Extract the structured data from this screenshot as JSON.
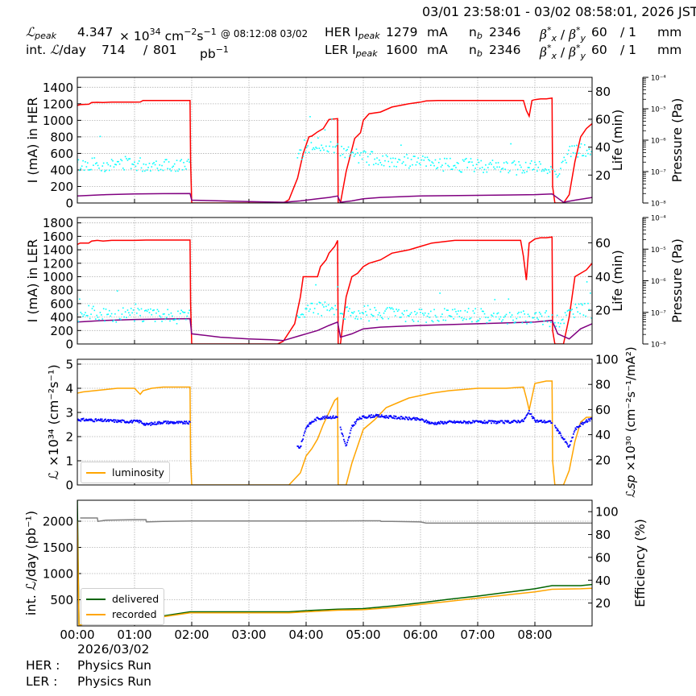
{
  "header": {
    "time_range": "03/01 23:58:01 - 03/02 08:58:01, 2026 JST",
    "lpeak_label": "peak",
    "lpeak_value": "4.347",
    "lpeak_unit_pre": "× 10",
    "lpeak_exp": "34",
    "lpeak_unit": "cm",
    "lpeak_exp2": "−2",
    "lpeak_unit2": "s",
    "lpeak_exp3": "−1",
    "lpeak_time": "@ 08:12:08 03/02",
    "intl_label": "int.",
    "intl_label2": "/day",
    "intl_value1": "714",
    "intl_sep": "/",
    "intl_value2": "801",
    "intl_unit": "pb",
    "intl_unit_exp": "−1",
    "her_label": "HER I",
    "her_sub": "peak",
    "her_ipeak": "1279",
    "ler_label": "LER I",
    "ler_sub": "peak",
    "ler_ipeak": "1600",
    "ma": "mA",
    "nb_label": "n",
    "nb_sub": "b",
    "her_nb": "2346",
    "ler_nb": "2346",
    "beta_label": "β",
    "beta_sup": "*",
    "beta_subx": "x",
    "beta_suby": "y",
    "beta_sep": " / ",
    "her_beta_x": "60",
    "her_beta_y": "/ 1",
    "ler_beta_x": "60",
    "ler_beta_y": "/ 1",
    "mm": "mm"
  },
  "footer": {
    "her_label": "HER :",
    "her_status": "Physics Run",
    "ler_label": "LER :",
    "ler_status": "Physics Run",
    "date_label": "2026/03/02"
  },
  "colors": {
    "current": "#ff0000",
    "life": "#800080",
    "pressure": "#00ffff",
    "luminosity": "#ffa500",
    "specific": "#0000ff",
    "delivered": "#006400",
    "recorded": "#ffa500",
    "efficiency": "#808080"
  },
  "chart_data": [
    {
      "type": "line",
      "panel": "her",
      "xlabel": "",
      "ylabel": "I (mA) in HER",
      "ylabel_right": "Life (min)",
      "ylabel_right2": "Pressure (Pa)",
      "ylim": [
        0,
        1520
      ],
      "y_ticks": [
        0,
        200,
        400,
        600,
        800,
        1000,
        1200,
        1400
      ],
      "y2lim": [
        0,
        90
      ],
      "y2_ticks": [
        20,
        40,
        60,
        80
      ],
      "y3_log_range": [
        -8,
        -4
      ],
      "y3_ticks": [
        "10⁻⁸",
        "10⁻⁷",
        "10⁻⁶",
        "10⁻⁵",
        "10⁻⁴"
      ],
      "grid": true,
      "series": [
        {
          "role": "current",
          "x": [
            0,
            0.05,
            0.2,
            0.25,
            0.35,
            0.45,
            0.6,
            0.75,
            1.0,
            1.1,
            1.15,
            1.3,
            1.6,
            1.97,
            1.98,
            2.0,
            2.5,
            3.0,
            3.6,
            3.7,
            3.85,
            3.95,
            4.05,
            4.1,
            4.2,
            4.3,
            4.4,
            4.55,
            4.56,
            4.6,
            4.7,
            4.85,
            4.95,
            5.0,
            5.1,
            5.3,
            5.5,
            5.8,
            6.0,
            6.1,
            6.3,
            6.6,
            7.0,
            7.5,
            7.8,
            7.85,
            7.9,
            7.95,
            8.0,
            8.1,
            8.2,
            8.3,
            8.31,
            8.35,
            8.5,
            8.6,
            8.7,
            8.8,
            8.9,
            9.0
          ],
          "values": [
            1180,
            1190,
            1195,
            1215,
            1218,
            1215,
            1220,
            1220,
            1220,
            1222,
            1240,
            1240,
            1240,
            1240,
            500,
            0,
            0,
            0,
            0,
            40,
            300,
            600,
            800,
            810,
            860,
            900,
            1010,
            1020,
            0,
            0,
            380,
            780,
            850,
            1000,
            1080,
            1100,
            1160,
            1200,
            1220,
            1235,
            1240,
            1240,
            1240,
            1240,
            1240,
            1120,
            1050,
            1240,
            1250,
            1260,
            1260,
            1270,
            200,
            0,
            0,
            100,
            500,
            800,
            900,
            960
          ]
        },
        {
          "role": "life",
          "x": [
            0,
            0.5,
            1.0,
            1.5,
            1.97,
            2.0,
            2.5,
            3.0,
            3.6,
            3.9,
            4.2,
            4.4,
            4.55,
            4.6,
            4.8,
            5.0,
            5.3,
            6.0,
            7.0,
            8.0,
            8.3,
            8.5,
            8.7,
            9.0
          ],
          "values": [
            5,
            6,
            6.5,
            6.7,
            6.8,
            2,
            1.5,
            1,
            0.5,
            1.5,
            3,
            4,
            5,
            0.5,
            1.5,
            3,
            4,
            5,
            5.5,
            6,
            6.5,
            0.5,
            2,
            4
          ]
        },
        {
          "role": "pressure",
          "log_x": [
            0.0,
            0.3,
            0.6,
            0.9,
            1.2,
            1.5,
            1.8,
            3.9,
            4.1,
            4.3,
            4.5,
            5.0,
            5.5,
            6.0,
            6.5,
            7.0,
            7.5,
            8.0,
            8.4,
            8.6,
            8.8,
            9.0
          ],
          "log_values": [
            -6.8,
            -6.75,
            -6.8,
            -6.7,
            -6.8,
            -6.75,
            -6.8,
            -6.5,
            -6.2,
            -6.1,
            -6.3,
            -6.55,
            -6.65,
            -6.7,
            -6.8,
            -6.8,
            -6.85,
            -6.85,
            -7.0,
            -6.4,
            -6.3,
            -6.4
          ],
          "spread": 0.22
        }
      ]
    },
    {
      "type": "line",
      "panel": "ler",
      "xlabel": "",
      "ylabel": "I (mA) in LER",
      "ylabel_right": "Life (min)",
      "ylabel_right2": "Pressure (Pa)",
      "ylim": [
        0,
        1880
      ],
      "y_ticks": [
        0,
        200,
        400,
        600,
        800,
        1000,
        1200,
        1400,
        1600,
        1800
      ],
      "y2lim": [
        0,
        75
      ],
      "y2_ticks": [
        20,
        40,
        60
      ],
      "y3_log_range": [
        -8,
        -4
      ],
      "y3_ticks": [
        "10⁻⁸",
        "10⁻⁷",
        "10⁻⁶",
        "10⁻⁵",
        "10⁻⁴"
      ],
      "grid": true,
      "series": [
        {
          "role": "current",
          "x": [
            0,
            0.05,
            0.2,
            0.25,
            0.35,
            0.45,
            0.6,
            0.75,
            1.0,
            1.2,
            1.6,
            1.97,
            1.98,
            2.0,
            2.5,
            3.0,
            3.5,
            3.6,
            3.8,
            3.9,
            3.95,
            4.2,
            4.25,
            4.35,
            4.4,
            4.5,
            4.55,
            4.56,
            4.6,
            4.7,
            4.8,
            4.9,
            5.0,
            5.1,
            5.3,
            5.5,
            5.8,
            6.0,
            6.2,
            6.6,
            7.0,
            7.5,
            7.75,
            7.8,
            7.85,
            7.9,
            8.0,
            8.1,
            8.2,
            8.3,
            8.31,
            8.35,
            8.5,
            8.6,
            8.7,
            8.9,
            9.0
          ],
          "values": [
            1480,
            1500,
            1500,
            1530,
            1540,
            1530,
            1540,
            1540,
            1540,
            1545,
            1545,
            1545,
            600,
            0,
            0,
            0,
            0,
            40,
            300,
            700,
            1000,
            1000,
            1150,
            1250,
            1350,
            1450,
            1540,
            0,
            0,
            700,
            1000,
            1050,
            1150,
            1200,
            1250,
            1350,
            1400,
            1450,
            1500,
            1540,
            1540,
            1540,
            1540,
            1300,
            950,
            1500,
            1560,
            1580,
            1580,
            1590,
            200,
            0,
            0,
            400,
            1000,
            1100,
            1200
          ]
        },
        {
          "role": "life",
          "x": [
            0,
            0.5,
            1.0,
            1.5,
            1.97,
            2.0,
            2.5,
            3.0,
            3.4,
            3.6,
            3.9,
            4.2,
            4.4,
            4.55,
            4.6,
            4.8,
            5.0,
            5.3,
            6.0,
            7.0,
            8.0,
            8.3,
            8.4,
            8.6,
            8.8,
            9.0
          ],
          "values": [
            13,
            14,
            14.5,
            14.8,
            15,
            6,
            4,
            3,
            2.5,
            2,
            5,
            8,
            11,
            13,
            4,
            6,
            9,
            10,
            11,
            12,
            13,
            14,
            6,
            3,
            9,
            12
          ]
        },
        {
          "role": "pressure",
          "log_x": [
            0.0,
            0.3,
            0.6,
            0.9,
            1.2,
            1.5,
            1.8,
            3.9,
            4.1,
            4.3,
            4.5,
            5.0,
            5.5,
            6.0,
            6.5,
            7.0,
            7.5,
            8.0,
            8.4,
            8.6,
            8.8,
            9.0
          ],
          "log_values": [
            -7.1,
            -7.0,
            -7.1,
            -7.05,
            -7.1,
            -7.1,
            -7.15,
            -7.0,
            -6.8,
            -6.9,
            -7.0,
            -7.0,
            -7.05,
            -7.1,
            -7.1,
            -7.1,
            -7.15,
            -7.15,
            -7.3,
            -7.0,
            -6.9,
            -7.0
          ],
          "spread": 0.22
        }
      ]
    },
    {
      "type": "line",
      "panel": "luminosity",
      "xlabel": "",
      "ylabel": "×10³⁴ (cm⁻²s⁻¹)",
      "ylabel_right": "×10³⁰ (cm⁻²s⁻¹/mA²)",
      "ylim": [
        0,
        5.2
      ],
      "y_ticks": [
        0,
        1,
        2,
        3,
        4,
        5
      ],
      "y2lim": [
        0,
        100
      ],
      "y2_ticks": [
        20,
        40,
        60,
        80,
        100
      ],
      "grid": true,
      "legend": "lower-left",
      "series": [
        {
          "role": "luminosity",
          "name": "luminosity",
          "x": [
            0,
            0.1,
            0.3,
            0.5,
            0.7,
            1.0,
            1.1,
            1.15,
            1.3,
            1.5,
            1.7,
            1.97,
            1.98,
            2.0,
            2.5,
            3.0,
            3.5,
            3.7,
            3.9,
            4.0,
            4.1,
            4.2,
            4.3,
            4.4,
            4.5,
            4.55,
            4.56,
            4.7,
            4.8,
            4.9,
            5.0,
            5.2,
            5.4,
            5.6,
            5.8,
            6.0,
            6.2,
            6.5,
            7.0,
            7.5,
            7.8,
            7.85,
            7.9,
            8.0,
            8.1,
            8.2,
            8.3,
            8.31,
            8.35,
            8.5,
            8.6,
            8.7,
            8.8,
            8.9,
            9.0
          ],
          "values": [
            3.8,
            3.85,
            3.9,
            3.95,
            4.0,
            4.0,
            3.75,
            3.9,
            4.0,
            4.05,
            4.05,
            4.05,
            1.0,
            0,
            0,
            0,
            0,
            0,
            0.5,
            1.2,
            1.5,
            1.9,
            2.5,
            3.0,
            3.5,
            3.6,
            0,
            0,
            0.9,
            1.6,
            2.3,
            2.7,
            3.2,
            3.4,
            3.6,
            3.7,
            3.8,
            3.9,
            4.0,
            4.0,
            4.05,
            3.6,
            3.1,
            4.2,
            4.25,
            4.3,
            4.3,
            1.0,
            0,
            0,
            0.6,
            1.8,
            2.6,
            2.8,
            2.8
          ]
        },
        {
          "role": "specific",
          "x": [
            0,
            0.3,
            0.6,
            0.9,
            1.1,
            1.2,
            1.5,
            1.8,
            1.97,
            3.9,
            4.0,
            4.1,
            4.2,
            4.4,
            4.55,
            4.7,
            4.8,
            4.9,
            5.0,
            5.2,
            5.5,
            6.0,
            6.2,
            6.5,
            7.0,
            7.5,
            7.8,
            7.9,
            8.0,
            8.3,
            8.6,
            8.7,
            8.8,
            9.0
          ],
          "values": [
            52,
            51.5,
            51,
            50.5,
            50.5,
            48,
            50,
            49.5,
            49.5,
            30,
            46,
            50,
            53,
            54,
            54,
            30,
            46,
            52,
            54,
            55,
            54,
            52,
            49,
            50,
            50,
            50,
            51,
            58,
            51,
            50,
            30,
            44,
            48,
            53
          ],
          "dots": true
        }
      ]
    },
    {
      "type": "line",
      "panel": "integrated",
      "xlabel": "",
      "ylabel": "/day (pb⁻¹)",
      "ylabel_right": "Efficiency (%)",
      "ylim": [
        0,
        2400
      ],
      "y_ticks": [
        500,
        1000,
        1500,
        2000
      ],
      "y2lim": [
        0,
        110
      ],
      "y2_ticks": [
        20,
        40,
        60,
        80,
        100
      ],
      "x_ticks": [
        "00:00",
        "01:00",
        "02:00",
        "03:00",
        "04:00",
        "05:00",
        "06:00",
        "07:00",
        "08:00"
      ],
      "xlim": [
        0,
        9
      ],
      "grid": true,
      "legend": "lower-left",
      "series": [
        {
          "role": "delivered",
          "name": "delivered",
          "x": [
            0,
            0.03,
            0.05,
            0.2,
            0.5,
            1.0,
            1.5,
            1.97,
            2.5,
            3.0,
            3.7,
            4.0,
            4.55,
            5.0,
            5.5,
            6.0,
            6.5,
            7.0,
            7.5,
            8.0,
            8.3,
            8.8,
            9.0
          ],
          "values": [
            2400,
            10,
            20,
            50,
            80,
            130,
            190,
            270,
            270,
            270,
            270,
            290,
            320,
            330,
            380,
            440,
            510,
            570,
            640,
            710,
            770,
            770,
            790
          ]
        },
        {
          "role": "recorded",
          "name": "recorded",
          "x": [
            0,
            0.03,
            0.05,
            0.2,
            0.5,
            1.0,
            1.5,
            1.97,
            2.5,
            3.0,
            3.7,
            4.0,
            4.55,
            5.0,
            5.5,
            6.0,
            6.5,
            7.0,
            7.5,
            8.0,
            8.3,
            8.8,
            9.0
          ],
          "values": [
            2000,
            8,
            18,
            45,
            70,
            115,
            175,
            250,
            250,
            250,
            250,
            270,
            300,
            310,
            350,
            410,
            470,
            530,
            590,
            650,
            700,
            710,
            720
          ]
        },
        {
          "role": "efficiency",
          "x": [
            0.05,
            0.35,
            0.36,
            0.5,
            1.0,
            1.2,
            1.21,
            1.5,
            2.0,
            3.0,
            4.0,
            5.0,
            5.3,
            5.31,
            5.5,
            6.0,
            6.1,
            6.11,
            6.5,
            7.0,
            8.0,
            9.0
          ],
          "values": [
            94.5,
            94.5,
            91.5,
            92.5,
            93,
            93,
            91,
            91.5,
            91.8,
            91.8,
            91.8,
            92,
            92,
            91.5,
            91.5,
            91,
            90,
            90,
            90,
            90,
            90,
            90
          ]
        }
      ]
    }
  ]
}
